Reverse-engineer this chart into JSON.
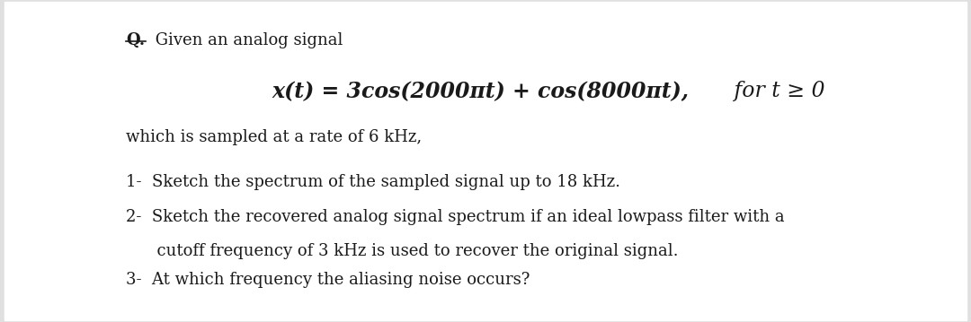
{
  "background_color": "#e0e0e0",
  "content_background": "#ffffff",
  "title_prefix": "Q.",
  "title_text": " Given an analog signal",
  "equation": "x(t) = 3cos(2000πt) + cos(8000πt),",
  "fort_text": "   for t ≥ 0",
  "sampling_text": "which is sampled at a rate of 6 kHz,",
  "item1": "1-  Sketch the spectrum of the sampled signal up to 18 kHz.",
  "item2a": "2-  Sketch the recovered analog signal spectrum if an ideal lowpass filter with a",
  "item2b": "      cutoff frequency of 3 kHz is used to recover the original signal.",
  "item3": "3-  At which frequency the aliasing noise occurs?",
  "font_size_title": 13,
  "font_size_eq": 17,
  "font_size_body": 13,
  "text_color": "#1a1a1a"
}
